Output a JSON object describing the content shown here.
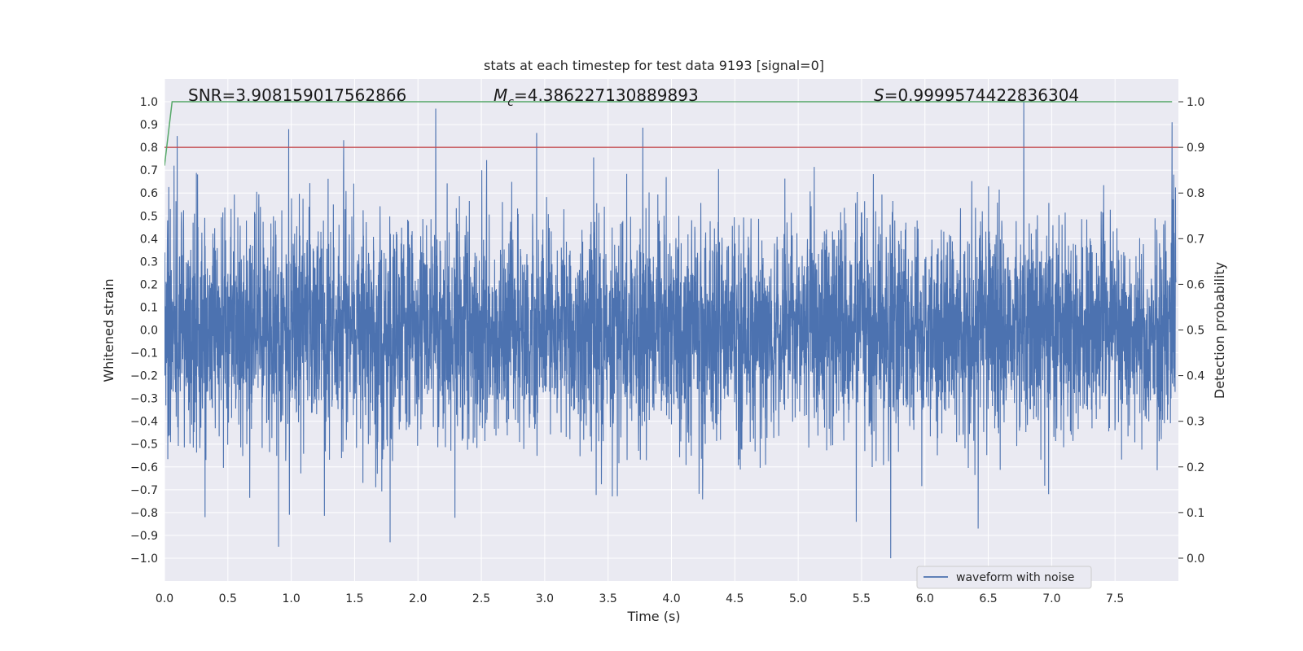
{
  "chart_data": {
    "type": "line",
    "title": "stats at each timestep for test data 9193 [signal=0]",
    "xlabel": "Time (s)",
    "ylabel_left": "Whitened strain",
    "ylabel_right": "Detection probability",
    "xlim": [
      0.0,
      8.0
    ],
    "ylim_left": [
      -1.1,
      1.1
    ],
    "ylim_right": [
      -0.05,
      1.05
    ],
    "x_ticks": [
      0.0,
      0.5,
      1.0,
      1.5,
      2.0,
      2.5,
      3.0,
      3.5,
      4.0,
      4.5,
      5.0,
      5.5,
      6.0,
      6.5,
      7.0,
      7.5
    ],
    "x_tick_labels": [
      "0.0",
      "0.5",
      "1.0",
      "1.5",
      "2.0",
      "2.5",
      "3.0",
      "3.5",
      "4.0",
      "4.5",
      "5.0",
      "5.5",
      "6.0",
      "6.5",
      "7.0",
      "7.5"
    ],
    "y_left_ticks": [
      1.0,
      0.9,
      0.8,
      0.7,
      0.6,
      0.5,
      0.4,
      0.3,
      0.2,
      0.1,
      0.0,
      -0.1,
      -0.2,
      -0.3,
      -0.4,
      -0.5,
      -0.6,
      -0.7,
      -0.8,
      -0.9,
      -1.0
    ],
    "y_left_tick_labels": [
      "1.0",
      "0.9",
      "0.8",
      "0.7",
      "0.6",
      "0.5",
      "0.4",
      "0.3",
      "0.2",
      "0.1",
      "0.0",
      "−0.1",
      "−0.2",
      "−0.3",
      "−0.4",
      "−0.5",
      "−0.6",
      "−0.7",
      "−0.8",
      "−0.9",
      "−1.0"
    ],
    "y_right_ticks": [
      1.0,
      0.9,
      0.8,
      0.7,
      0.6,
      0.5,
      0.4,
      0.3,
      0.2,
      0.1,
      0.0
    ],
    "y_right_tick_labels": [
      "1.0",
      "0.9",
      "0.8",
      "0.7",
      "0.6",
      "0.5",
      "0.4",
      "0.3",
      "0.2",
      "0.1",
      "0.0"
    ],
    "annotations": {
      "snr": "SNR=3.908159017562866",
      "mc_symbol": "M",
      "mc_sub": "c",
      "mc_value": "=4.386227130889893",
      "s_symbol": "S",
      "s_value": "=0.9999574422836304"
    },
    "legend": {
      "label": "waveform with noise",
      "placement": "lower-right"
    },
    "series": [
      {
        "name": "waveform with noise",
        "axis": "left",
        "color": "#4c72b0",
        "description": "noisy whitened strain, approx amplitude within ±1.0",
        "peaks": [
          {
            "x": 0.1,
            "y": 0.85
          },
          {
            "x": 0.98,
            "y": 0.88
          },
          {
            "x": 2.14,
            "y": 0.97
          },
          {
            "x": 6.78,
            "y": 1.0
          },
          {
            "x": 7.95,
            "y": 0.91
          },
          {
            "x": 0.9,
            "y": -0.95
          },
          {
            "x": 1.78,
            "y": -0.93
          },
          {
            "x": 5.73,
            "y": -1.0
          },
          {
            "x": 0.32,
            "y": -0.82
          },
          {
            "x": 6.42,
            "y": -0.87
          }
        ]
      },
      {
        "name": "detection probability",
        "axis": "right",
        "color": "#55a868",
        "x": [
          0.0,
          0.06,
          7.95
        ],
        "y": [
          0.86,
          1.0,
          1.0
        ]
      },
      {
        "name": "threshold",
        "axis": "right",
        "color": "#c44e52",
        "x": [
          0.0,
          8.0
        ],
        "y": [
          0.9,
          0.9
        ]
      }
    ]
  },
  "colors": {
    "plot_background": "#eaeaf2",
    "grid": "#ffffff",
    "waveform": "#4c72b0",
    "probability": "#55a868",
    "threshold": "#c44e52"
  }
}
